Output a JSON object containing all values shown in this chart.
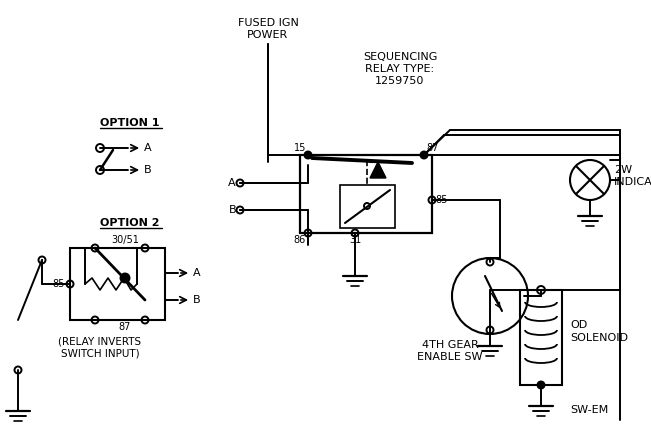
{
  "bg_color": "#ffffff",
  "figsize": [
    6.51,
    4.44
  ],
  "dpi": 100,
  "texts": {
    "fused_ign_1": "FUSED IGN",
    "fused_ign_2": "POWER",
    "seq_1": "SEQUENCING",
    "seq_2": "RELAY TYPE:",
    "seq_3": "1259750",
    "option1": "OPTION 1",
    "option2": "OPTION 2",
    "relay_inv_1": "(RELAY INVERTS",
    "relay_inv_2": "SWITCH INPUT)",
    "fourth_1": "4TH GEAR",
    "fourth_2": "ENABLE SW",
    "od_1": "OD",
    "od_2": "SOLENOID",
    "ind_1": "2W",
    "ind_2": "INDICATOR",
    "sw_em": "SW-EM",
    "pin15": "15",
    "pin87": "87",
    "pin86": "86",
    "pin31": "31",
    "pin85": "85",
    "pinA": "A",
    "pinB": "B",
    "opt2_30": "30/51",
    "opt2_87": "87",
    "opt2_85": "85"
  }
}
